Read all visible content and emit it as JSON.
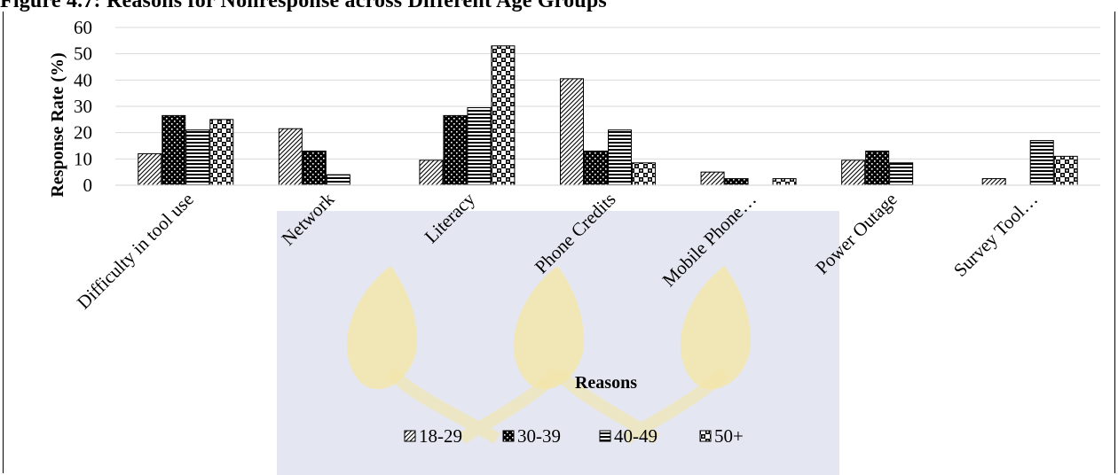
{
  "title": "Figure 4.7: Reasons for Nonresponse across Different Age Groups",
  "chart_data": {
    "type": "bar",
    "categories": [
      "Difficulty in tool use",
      "Network",
      "Literacy",
      "Phone Credits",
      "Mobile Phone…",
      "Power Outage",
      "Survey Tool…"
    ],
    "series": [
      {
        "name": "18-29",
        "values": [
          12,
          21.5,
          9.5,
          40.5,
          5,
          9.5,
          2.5
        ],
        "pattern": "diagonal"
      },
      {
        "name": "30-39",
        "values": [
          26.5,
          13,
          26.5,
          13,
          2.5,
          13,
          0
        ],
        "pattern": "dots"
      },
      {
        "name": "40-49",
        "values": [
          21,
          4,
          29.5,
          21,
          0,
          8.5,
          17
        ],
        "pattern": "horizontal"
      },
      {
        "name": "50+",
        "values": [
          25,
          0,
          53,
          8.5,
          2.5,
          0,
          11
        ],
        "pattern": "checker"
      }
    ],
    "ylim": [
      0,
      60
    ],
    "yticks": [
      0,
      10,
      20,
      30,
      40,
      50,
      60
    ],
    "ylabel": "Response Rate (%)",
    "xlabel": "Reasons",
    "grid": true,
    "legend": "bottom"
  }
}
